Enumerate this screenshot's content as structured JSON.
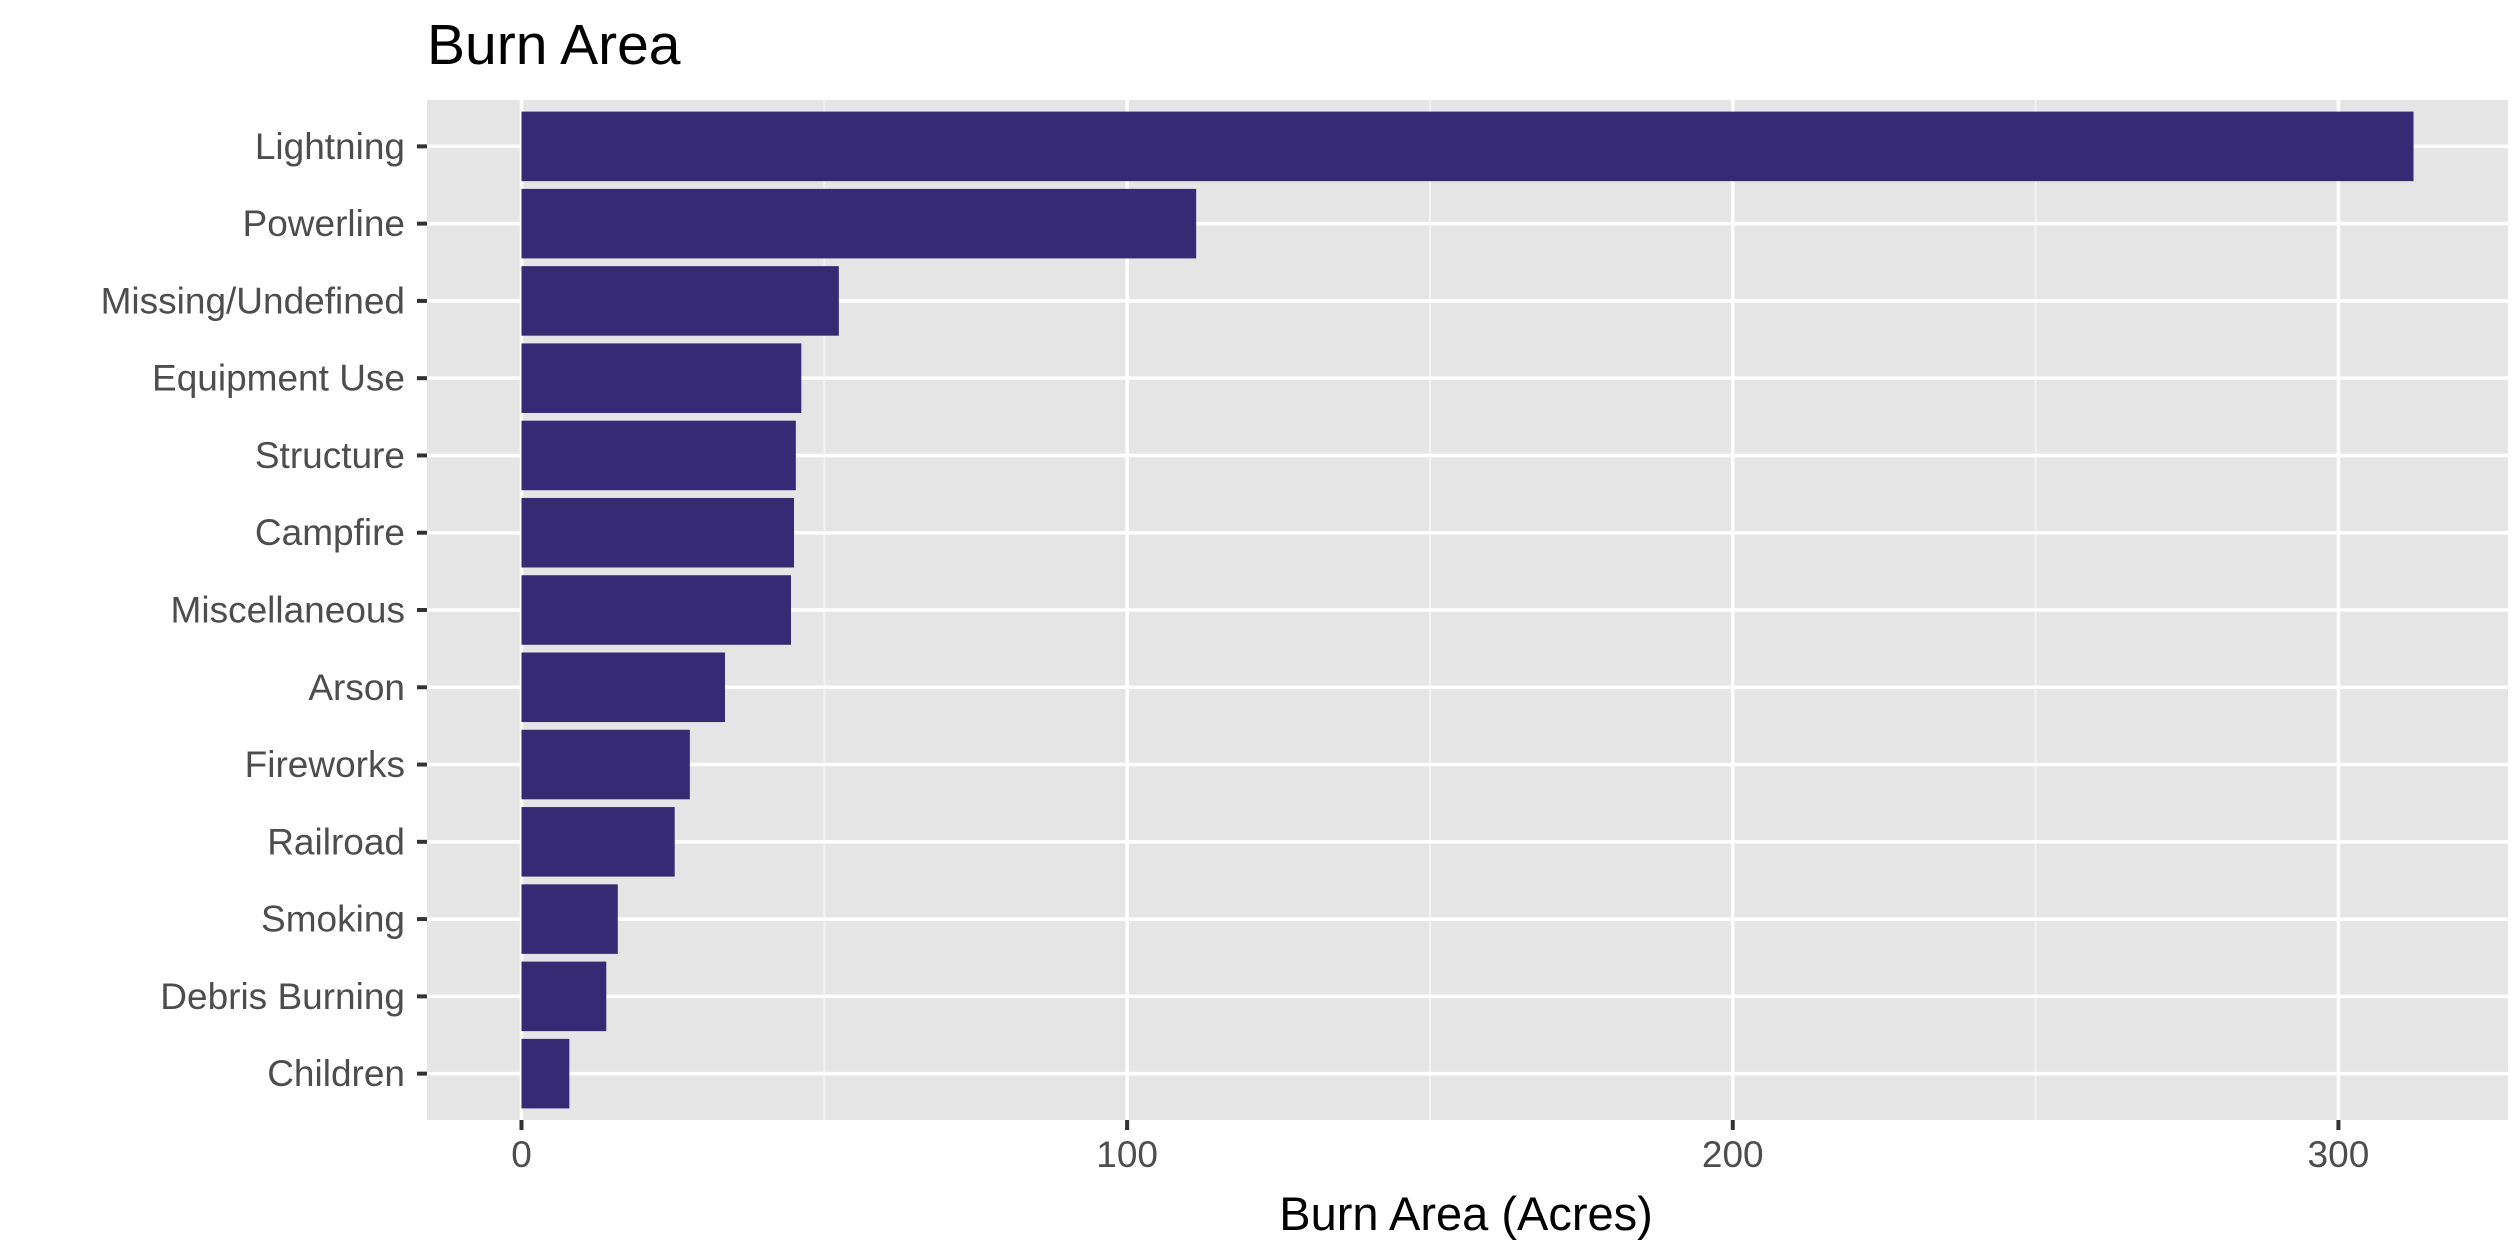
{
  "colors": {
    "bar": "#372a75",
    "panel": "#e5e5e5",
    "grid_major": "#ffffff",
    "grid_minor": "#f2f2f2",
    "tick": "#333333"
  },
  "chart_data": {
    "type": "bar",
    "orientation": "horizontal",
    "title": "Burn Area",
    "xlabel": "Burn Area (Acres)",
    "ylabel": "",
    "categories": [
      "Lightning",
      "Powerline",
      "Missing/Undefined",
      "Equipment Use",
      "Structure",
      "Campfire",
      "Miscellaneous",
      "Arson",
      "Fireworks",
      "Railroad",
      "Smoking",
      "Debris Burning",
      "Children"
    ],
    "values": [
      312.4,
      111.4,
      52.4,
      46.2,
      45.3,
      45.0,
      44.5,
      33.6,
      27.8,
      25.3,
      15.9,
      14.0,
      7.9
    ],
    "xlim": [
      -15.6,
      328
    ],
    "xticks": [
      0,
      100,
      200,
      300
    ],
    "xtick_labels": [
      "0",
      "100",
      "200",
      "300"
    ],
    "grid": true,
    "legend": "none"
  }
}
